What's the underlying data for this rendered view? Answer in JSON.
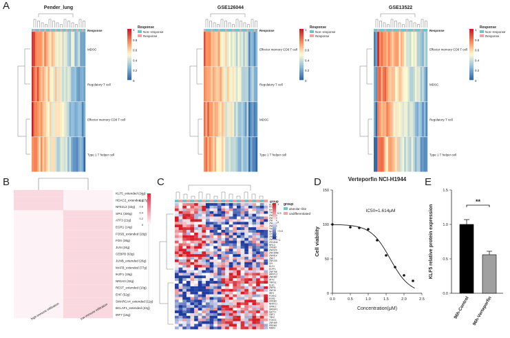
{
  "panels": {
    "a": "A",
    "b": "B",
    "c": "C",
    "d": "D",
    "e": "E"
  },
  "heatmaps_a": [
    {
      "title": "Pender_lung",
      "rows": [
        "MDSC",
        "Regulatory T cell",
        "Effector memory CD8 T cell",
        "Type 1 T helper cell"
      ],
      "response_label": "Response",
      "legend_title": "Response",
      "legend_items": [
        "Non−response",
        "Response"
      ],
      "scale_ticks": [
        "1",
        "0.8",
        "0.6",
        "0.4",
        "0.2",
        "0"
      ]
    },
    {
      "title": "GSE126044",
      "rows": [
        "Effector memory CD8 T cell",
        "Regulatory T cell",
        "MDSC",
        "Type 1 T helper cell"
      ],
      "response_label": "Response",
      "legend_title": "Response",
      "legend_items": [
        "Non−response",
        "Response"
      ],
      "scale_ticks": [
        "1",
        "0.8",
        "0.6",
        "0.4",
        "0.2",
        "0"
      ]
    },
    {
      "title": "GSE13522",
      "rows": [
        "Effector memory CD8 T cell",
        "MDSC",
        "Regulatory T cell",
        "Type 1 T helper cell"
      ],
      "response_label": "Response",
      "legend_title": "Response",
      "legend_items": [
        "Non−response",
        "Response"
      ],
      "scale_ticks": [
        "1",
        "0.8",
        "0.6",
        "0.4",
        "0.2",
        "0"
      ]
    }
  ],
  "panel_b": {
    "rows": [
      "KLF5_extended (24g)",
      "HDAC2_extended (27g)",
      "NFE2L2 (32g)",
      "SPI1 (300g)",
      "ATF3 (21g)",
      "EGR1 (14g)",
      "FOSB_extended (28g)",
      "FOS (36g)",
      "JUN (24g)",
      "CEBPB (63g)",
      "JUNB_extended (26g)",
      "MAFB_extended (77g)",
      "IKZF1 (19g)",
      "NR1H3 (32g)",
      "REST_extended (10g)",
      "EHF (52g)",
      "SMARCA4_extended (11g)",
      "BCLAF1_extended (24g)",
      "IRF7 (15g)"
    ],
    "columns": [
      "high immune infiltration",
      "low immune infiltration"
    ],
    "scale_ticks": [
      "1",
      "0.8",
      "0.6",
      "0.4",
      "0.2",
      "0"
    ]
  },
  "panel_c": {
    "genes": [
      "KLF5",
      "PFKP",
      "MYC",
      "TRIM",
      "ZNF750",
      "ZNF783",
      "ZNF484",
      "ZNF200",
      "ZNF910",
      "THOP2",
      "NFIL1",
      "CREB3",
      "ZNF814",
      "ZNF208",
      "ZSCAN4",
      "NFIL3",
      "CREB3",
      "ZNF529",
      "ZNF394B",
      "ZNF814",
      "ZNF7",
      "ZNF239",
      "GFI",
      "ELF4",
      "ELPF1",
      "ZNF766",
      "ARNTL2",
      "ZNF487",
      "ATF2",
      "TRPS1",
      "ELK1",
      "ZNF91",
      "ZNF35",
      "IRF4",
      "FOXK2",
      "EGR2",
      "CREB3",
      "NFATC1",
      "GRHL1",
      "SREBF1",
      "SATT3",
      "CBF1",
      "TBX2",
      "FOXO1",
      "ZNF469",
      "PRDM2",
      "MBD3"
    ],
    "group_label": "group",
    "group_items": [
      "alveolar−like",
      "undifferentiated"
    ],
    "scale_ticks": [
      "1",
      "0.5",
      "0",
      "−0.5",
      "−1"
    ]
  },
  "panel_d": {
    "title": "Verteporfin NCI-H1944",
    "ylabel": "Cell viability",
    "xlabel": "Concentration(μM)",
    "annotation": "IC50=1.614μM",
    "xticks": [
      "0.0",
      "0.5",
      "1.0",
      "1.5",
      "2.0",
      "2.5"
    ],
    "yticks": [
      "0",
      "50",
      "100",
      "150"
    ]
  },
  "panel_e": {
    "ylabel": "KLF5 relative protein expression",
    "yticks": [
      "0.0",
      "0.5",
      "1.0",
      "1.5"
    ],
    "significance": "**"
  },
  "chart_data": [
    {
      "type": "scatter",
      "title": "Verteporfin NCI-H1944",
      "xlabel": "Concentration(μM)",
      "ylabel": "Cell viability",
      "x": [
        0.0,
        0.5,
        0.75,
        1.0,
        1.25,
        1.5,
        1.75,
        2.0,
        2.25
      ],
      "y": [
        100,
        96,
        95,
        93,
        77,
        55,
        38,
        26,
        18
      ],
      "xlim": [
        0,
        2.5
      ],
      "ylim": [
        0,
        150
      ],
      "fit": "sigmoid",
      "ic50": 1.614
    },
    {
      "type": "bar",
      "categories": [
        "96h-Control",
        "96h-Verteporfin"
      ],
      "values": [
        1.0,
        0.56
      ],
      "errors": [
        0.07,
        0.05
      ],
      "colors": [
        "#000000",
        "#a0a0a0"
      ],
      "ylabel": "KLF5 relative protein expression",
      "ylim": [
        0,
        1.5
      ]
    }
  ]
}
